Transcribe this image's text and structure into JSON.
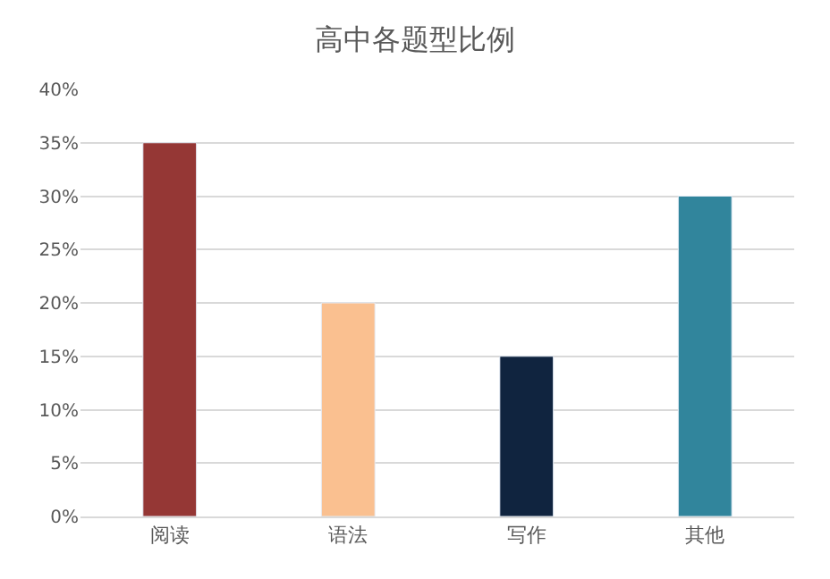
{
  "chart_data": {
    "type": "bar",
    "title": "高中各题型比例",
    "categories": [
      "阅读",
      "语法",
      "写作",
      "其他"
    ],
    "values": [
      35,
      20,
      15,
      30
    ],
    "colors": [
      "#953735",
      "#fac090",
      "#10243f",
      "#31859c"
    ],
    "ylim": [
      0,
      40
    ],
    "yticks": [
      {
        "value": 0,
        "label": "0%"
      },
      {
        "value": 5,
        "label": "5%"
      },
      {
        "value": 10,
        "label": "10%"
      },
      {
        "value": 15,
        "label": "15%"
      },
      {
        "value": 20,
        "label": "20%"
      },
      {
        "value": 25,
        "label": "25%"
      },
      {
        "value": 30,
        "label": "30%"
      },
      {
        "value": 35,
        "label": "35%"
      },
      {
        "value": 40,
        "label": "40%"
      }
    ],
    "grid": "y"
  }
}
